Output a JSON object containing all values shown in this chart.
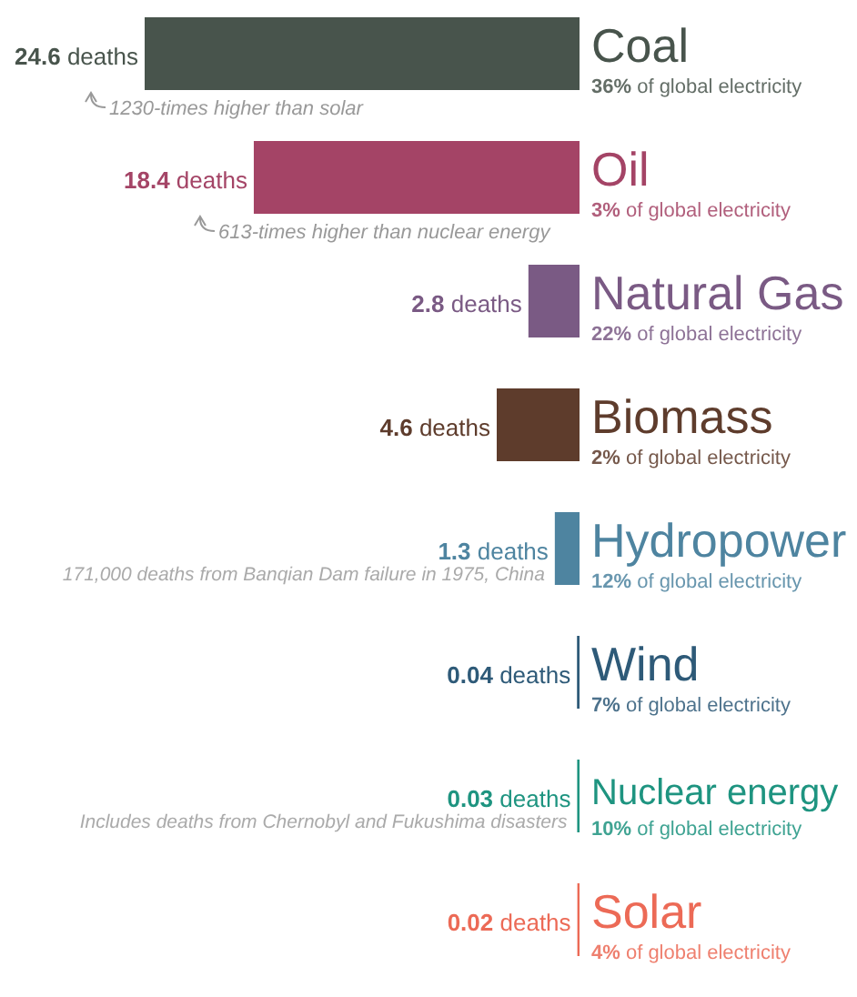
{
  "chart_data": {
    "type": "bar",
    "orientation": "horizontal",
    "categories": [
      "Coal",
      "Oil",
      "Natural Gas",
      "Biomass",
      "Hydropower",
      "Wind",
      "Nuclear energy",
      "Solar"
    ],
    "values": [
      24.6,
      18.4,
      2.8,
      4.6,
      1.3,
      0.04,
      0.03,
      0.02
    ],
    "colors": [
      "#48544c",
      "#a44466",
      "#7a5a84",
      "#5e3c2c",
      "#4e84a0",
      "#2e5a78",
      "#1e9480",
      "#ec6a56"
    ],
    "value_labels": [
      "24.6 deaths",
      "18.4 deaths",
      "2.8 deaths",
      "4.6 deaths",
      "1.3 deaths",
      "0.04 deaths",
      "0.03 deaths",
      "0.02 deaths"
    ],
    "annotations": [
      {
        "text": "36% of global electricity",
        "x": 0,
        "y": "Coal"
      },
      {
        "text": "3% of global electricity",
        "x": 0,
        "y": "Oil"
      },
      {
        "text": "22% of global electricity",
        "x": 0,
        "y": "Natural Gas"
      },
      {
        "text": "2% of global electricity",
        "x": 0,
        "y": "Biomass"
      },
      {
        "text": "12% of global electricity",
        "x": 0,
        "y": "Hydropower"
      },
      {
        "text": "7% of global electricity",
        "x": 0,
        "y": "Wind"
      },
      {
        "text": "10% of global electricity",
        "x": 0,
        "y": "Nuclear energy"
      },
      {
        "text": "4% of global electricity",
        "x": 0,
        "y": "Solar"
      },
      {
        "text": "1230-times higher than solar",
        "x": 24.6,
        "y": "Coal"
      },
      {
        "text": "613-times higher than nuclear energy",
        "x": 18.4,
        "y": "Oil"
      },
      {
        "text": "171,000 deaths from Banqian Dam failure in 1975, China",
        "x": 1.3,
        "y": "Hydropower"
      },
      {
        "text": "Includes deaths from Chernobyl and Fukushima disasters",
        "x": 0.03,
        "y": "Nuclear energy"
      }
    ]
  }
}
